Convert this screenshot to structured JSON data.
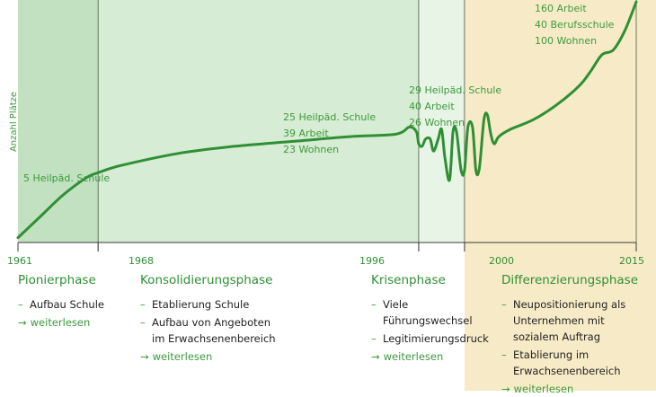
{
  "chart_data": {
    "type": "line",
    "ylabel": "Anzahl Plätze",
    "x_ticks": [
      1961,
      1968,
      1996,
      2000,
      2015
    ],
    "xlim": [
      1961,
      2015
    ],
    "ylim": [
      0,
      100
    ],
    "line_color": "#2f8f34",
    "band_colors": [
      "#c2e1c0",
      "#d7ecd4",
      "#e8f4e6",
      "#f7ebc7"
    ],
    "series": [
      {
        "x": [
          1961,
          1963,
          1965,
          1967,
          1968,
          1970,
          1975,
          1980,
          1985,
          1990,
          1994,
          1995.2,
          1995.8,
          1996,
          1996.3,
          1996.6,
          1997,
          1997.3,
          1997.7,
          1998,
          1998.3,
          1998.7,
          1999,
          1999.3,
          1999.7,
          2000,
          2000.3,
          2000.7,
          2001,
          2001.3,
          2001.7,
          2002,
          2002.3,
          2002.6,
          2003,
          2004,
          2006,
          2008,
          2010,
          2011,
          2012,
          2013,
          2014,
          2015
        ],
        "y": [
          2,
          11,
          20,
          27,
          29,
          32,
          37,
          40,
          42,
          44,
          45,
          48,
          46,
          41,
          40,
          43,
          43,
          38,
          43,
          47,
          35,
          26,
          46,
          46,
          30,
          30,
          48,
          48,
          30,
          31,
          51,
          53,
          45,
          41,
          44,
          47,
          51,
          57,
          65,
          71,
          78,
          80,
          88,
          100
        ]
      }
    ],
    "annotations": [
      {
        "x": 1968,
        "lines": [
          "5 Heilpäd. Schule"
        ]
      },
      {
        "x": 1996,
        "lines": [
          "25 Heilpäd. Schule",
          "39 Arbeit",
          "23 Wohnen"
        ]
      },
      {
        "x": 2000,
        "lines": [
          "29 Heilpäd. Schule",
          "40 Arbeit",
          "26 Wohnen"
        ]
      },
      {
        "x": 2015,
        "lines": [
          "160 Arbeit",
          "40 Berufsschule",
          "100 Wohnen"
        ]
      }
    ]
  },
  "phases": [
    {
      "title": "Pionierphase",
      "items": [
        "Aufbau Schule"
      ],
      "link": "weiterlesen"
    },
    {
      "title": "Konsolidierungsphase",
      "items": [
        "Etablierung Schule",
        "Aufbau von Angeboten im Erwachsenenbereich"
      ],
      "link": "weiterlesen"
    },
    {
      "title": "Krisenphase",
      "items": [
        "Viele Führungswechsel",
        "Legitimierungsdruck"
      ],
      "link": "weiterlesen"
    },
    {
      "title": "Differenzierungsphase",
      "items": [
        "Neupositionierung als Unternehmen mit sozialem Auftrag",
        "Etablierung im Erwachsenenbereich"
      ],
      "link": "weiterlesen"
    }
  ]
}
